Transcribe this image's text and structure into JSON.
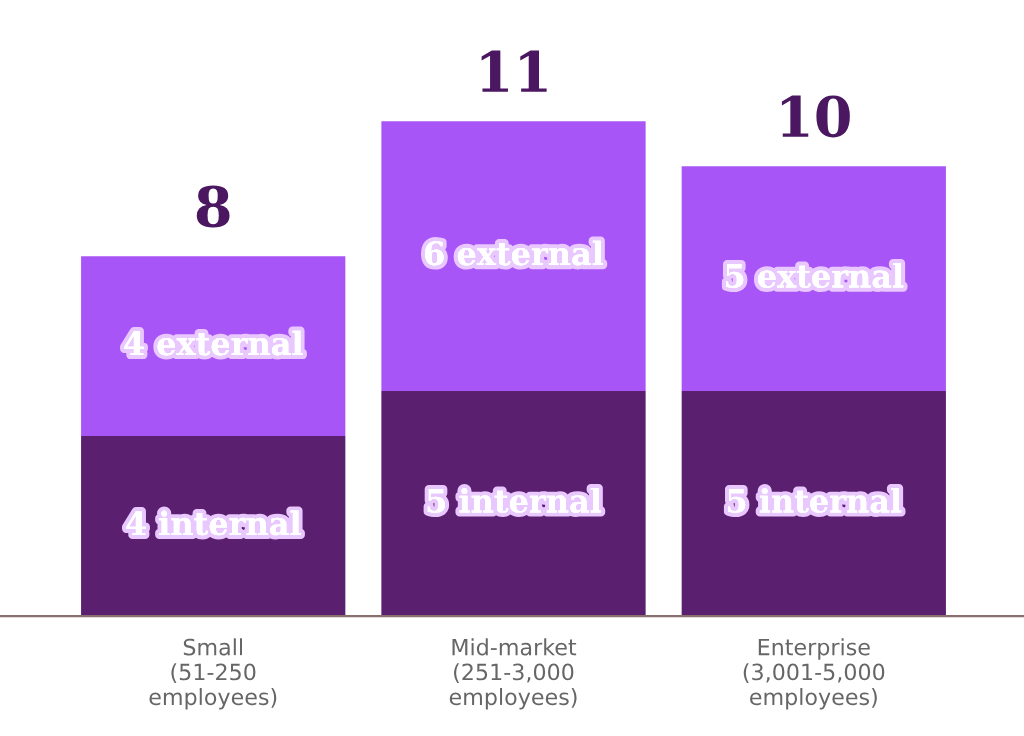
{
  "chart_data": {
    "type": "bar",
    "stacked": true,
    "categories": [
      "Small\n(51-250\nemployees)",
      "Mid-market\n(251-3,000\nemployees)",
      "Enterprise\n(3,001-5,000\nemployees)"
    ],
    "series": [
      {
        "color": "#5a1f6e",
        "values": [
          4,
          5,
          5
        ],
        "value_labels": [
          "4 internal",
          "5 internal",
          "5 internal"
        ]
      },
      {
        "color": "#a855f7",
        "values": [
          4,
          6,
          5
        ],
        "value_labels": [
          "4 external",
          "6 external",
          "5 external"
        ]
      }
    ],
    "totals": [
      "8",
      "11",
      "10"
    ]
  }
}
